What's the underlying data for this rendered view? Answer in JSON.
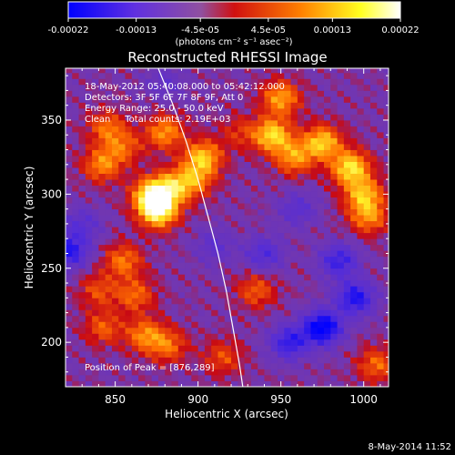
{
  "chart_data": {
    "type": "heatmap",
    "title": "Reconstructed RHESSI Image",
    "xlabel": "Heliocentric X (arcsec)",
    "ylabel": "Heliocentric Y (arcsec)",
    "xlim": [
      820,
      1015
    ],
    "ylim": [
      170,
      385
    ],
    "x_ticks": [
      850,
      900,
      950,
      1000
    ],
    "y_ticks": [
      200,
      250,
      300,
      350
    ],
    "colorbar": {
      "min": -0.00022,
      "max": 0.00022,
      "ticks": [
        "-0.00022",
        "-0.00013",
        "-4.5e-05",
        "4.5e-05",
        "0.00013",
        "0.00022"
      ],
      "units_label": "(photons cm⁻² s⁻¹ asec⁻²)",
      "colormap": [
        "#0000ff",
        "#8040c0",
        "#ff0000",
        "#ff8000",
        "#ffff00",
        "#ffffff"
      ]
    },
    "annotations": {
      "time": "18-May-2012 05:40:08.000 to 05:42:12.000",
      "detectors": "Detectors: 3F 5F 6F 7F 8F 9F, Att 0",
      "energy": "Energy Range: 25.0 - 50.0 keV",
      "clean": "Clean     Total counts: 2.19E+03",
      "peak": "Position of Peak = [876,289]"
    },
    "peak": {
      "x": 876,
      "y": 289
    },
    "bright_regions": [
      {
        "x": 876,
        "y": 289,
        "intensity": 0.00022
      },
      {
        "x": 872,
        "y": 300,
        "intensity": 0.00019
      },
      {
        "x": 885,
        "y": 305,
        "intensity": 0.00014
      },
      {
        "x": 842,
        "y": 320,
        "intensity": 0.00012
      },
      {
        "x": 845,
        "y": 345,
        "intensity": 0.0001
      },
      {
        "x": 855,
        "y": 332,
        "intensity": 9e-05
      },
      {
        "x": 880,
        "y": 342,
        "intensity": 0.00013
      },
      {
        "x": 903,
        "y": 325,
        "intensity": 0.00016
      },
      {
        "x": 898,
        "y": 310,
        "intensity": 0.00011
      },
      {
        "x": 945,
        "y": 340,
        "intensity": 0.00018
      },
      {
        "x": 958,
        "y": 325,
        "intensity": 0.00013
      },
      {
        "x": 975,
        "y": 335,
        "intensity": 0.00017
      },
      {
        "x": 992,
        "y": 318,
        "intensity": 0.00019
      },
      {
        "x": 1000,
        "y": 300,
        "intensity": 0.00015
      },
      {
        "x": 1003,
        "y": 285,
        "intensity": 0.00012
      },
      {
        "x": 855,
        "y": 255,
        "intensity": 0.00011
      },
      {
        "x": 840,
        "y": 235,
        "intensity": 8e-05
      },
      {
        "x": 843,
        "y": 210,
        "intensity": 9e-05
      },
      {
        "x": 862,
        "y": 232,
        "intensity": 0.0001
      },
      {
        "x": 868,
        "y": 205,
        "intensity": 0.00012
      },
      {
        "x": 882,
        "y": 198,
        "intensity": 0.0001
      },
      {
        "x": 935,
        "y": 235,
        "intensity": 9e-05
      },
      {
        "x": 915,
        "y": 190,
        "intensity": 8e-05
      },
      {
        "x": 1008,
        "y": 185,
        "intensity": 0.0001
      },
      {
        "x": 950,
        "y": 365,
        "intensity": 0.00014
      },
      {
        "x": 925,
        "y": 342,
        "intensity": 6e-05
      }
    ],
    "dim_regions": [
      {
        "x": 975,
        "y": 210,
        "intensity": -0.0002
      },
      {
        "x": 995,
        "y": 230,
        "intensity": -0.00015
      },
      {
        "x": 955,
        "y": 200,
        "intensity": -0.00013
      },
      {
        "x": 985,
        "y": 255,
        "intensity": -0.00012
      },
      {
        "x": 940,
        "y": 260,
        "intensity": -9e-05
      },
      {
        "x": 910,
        "y": 265,
        "intensity": -6e-05
      },
      {
        "x": 830,
        "y": 280,
        "intensity": -7e-05
      },
      {
        "x": 822,
        "y": 262,
        "intensity": -0.00014
      },
      {
        "x": 880,
        "y": 375,
        "intensity": -5e-05
      },
      {
        "x": 960,
        "y": 290,
        "intensity": -7e-05
      }
    ],
    "limb_curve": [
      [
        876,
        385
      ],
      [
        885,
        360
      ],
      [
        893,
        335
      ],
      [
        900,
        310
      ],
      [
        906,
        285
      ],
      [
        912,
        260
      ],
      [
        917,
        235
      ],
      [
        921,
        210
      ],
      [
        925,
        185
      ],
      [
        927,
        170
      ]
    ]
  },
  "footer": {
    "date": "8-May-2014 11:52"
  }
}
